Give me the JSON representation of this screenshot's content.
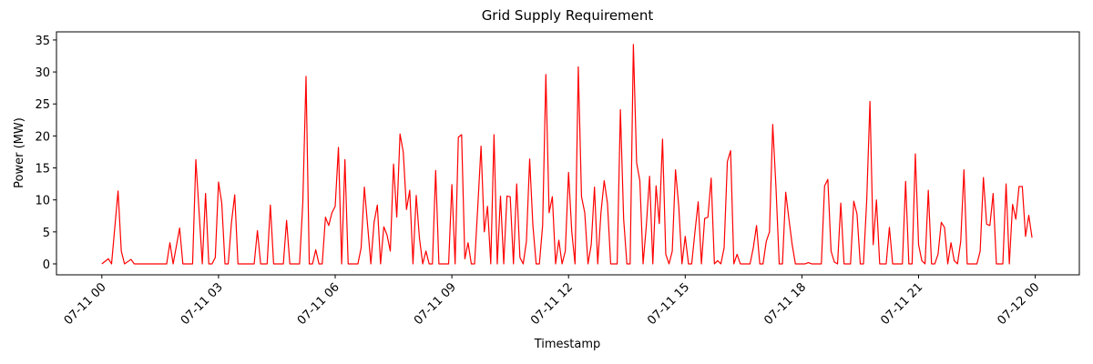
{
  "chart_data": {
    "type": "line",
    "title": "Grid Supply Requirement",
    "xlabel": "Timestamp",
    "ylabel": "Power (MW)",
    "color": "#ff0000",
    "xlim": [
      -70,
      1508
    ],
    "ylim": [
      -1.71,
      36.27
    ],
    "xticks": [
      {
        "value": 0,
        "label": "07-11 00"
      },
      {
        "value": 180,
        "label": "07-11 03"
      },
      {
        "value": 360,
        "label": "07-11 06"
      },
      {
        "value": 540,
        "label": "07-11 09"
      },
      {
        "value": 720,
        "label": "07-11 12"
      },
      {
        "value": 900,
        "label": "07-11 15"
      },
      {
        "value": 1080,
        "label": "07-11 18"
      },
      {
        "value": 1260,
        "label": "07-11 21"
      },
      {
        "value": 1440,
        "label": "07-12 00"
      }
    ],
    "yticks": [
      0,
      5,
      10,
      15,
      20,
      25,
      30,
      35
    ],
    "x": [
      0,
      10,
      15,
      25,
      30,
      35,
      45,
      50,
      100,
      105,
      110,
      120,
      125,
      140,
      145,
      155,
      160,
      165,
      170,
      175,
      180,
      185,
      190,
      195,
      200,
      205,
      210,
      235,
      240,
      245,
      255,
      260,
      265,
      280,
      285,
      290,
      305,
      310,
      315,
      320,
      325,
      330,
      335,
      340,
      345,
      350,
      355,
      360,
      365,
      370,
      375,
      380,
      395,
      400,
      405,
      410,
      415,
      420,
      425,
      430,
      435,
      440,
      445,
      450,
      455,
      460,
      465,
      470,
      475,
      480,
      485,
      490,
      495,
      500,
      505,
      510,
      515,
      520,
      535,
      540,
      545,
      550,
      555,
      560,
      565,
      570,
      575,
      580,
      585,
      590,
      595,
      600,
      605,
      610,
      615,
      620,
      625,
      630,
      635,
      640,
      645,
      650,
      655,
      660,
      665,
      670,
      675,
      680,
      685,
      690,
      695,
      700,
      705,
      710,
      715,
      720,
      725,
      730,
      735,
      740,
      745,
      750,
      755,
      760,
      765,
      770,
      775,
      780,
      785,
      795,
      800,
      805,
      810,
      815,
      820,
      825,
      830,
      835,
      840,
      845,
      850,
      855,
      860,
      865,
      870,
      875,
      880,
      885,
      890,
      895,
      900,
      905,
      910,
      915,
      920,
      925,
      930,
      935,
      940,
      945,
      950,
      955,
      960,
      965,
      970,
      975,
      980,
      985,
      1000,
      1005,
      1010,
      1015,
      1020,
      1025,
      1030,
      1035,
      1040,
      1045,
      1050,
      1055,
      1060,
      1065,
      1070,
      1085,
      1090,
      1095,
      1110,
      1115,
      1120,
      1125,
      1130,
      1135,
      1140,
      1145,
      1155,
      1160,
      1165,
      1170,
      1175,
      1180,
      1185,
      1190,
      1195,
      1200,
      1210,
      1215,
      1220,
      1235,
      1240,
      1245,
      1250,
      1255,
      1260,
      1265,
      1270,
      1275,
      1280,
      1285,
      1290,
      1295,
      1300,
      1305,
      1310,
      1315,
      1320,
      1325,
      1330,
      1335,
      1350,
      1355,
      1360,
      1365,
      1370,
      1375,
      1380,
      1390,
      1395,
      1400,
      1405,
      1410,
      1415,
      1420,
      1425,
      1430,
      1435
    ],
    "values": [
      0,
      0.8,
      0,
      11.4,
      2,
      0,
      0.7,
      0,
      0,
      3.3,
      0,
      5.6,
      0,
      0,
      16.3,
      0,
      11,
      0,
      0,
      1,
      12.8,
      9.5,
      0,
      0,
      6.5,
      10.8,
      0,
      0,
      5.2,
      0,
      0,
      9.2,
      0,
      0,
      6.8,
      0,
      0,
      9.5,
      29.3,
      0,
      0,
      2.2,
      0,
      0,
      7.3,
      6,
      8,
      9,
      18.2,
      0,
      16.3,
      0,
      0,
      2.5,
      12,
      6,
      0,
      6.5,
      9.2,
      0,
      5.8,
      4.5,
      2,
      15.6,
      7.3,
      20.3,
      17.5,
      8.5,
      11.5,
      0,
      10.7,
      4,
      0,
      2,
      0,
      0,
      14.6,
      0,
      0,
      12.4,
      0,
      19.8,
      20.2,
      0.8,
      3.3,
      0,
      0,
      9,
      18.4,
      5,
      9,
      0,
      20.2,
      0,
      10.6,
      0,
      10.6,
      10.5,
      0,
      12.5,
      1,
      0,
      3.5,
      16.4,
      6,
      0,
      0,
      6,
      29.6,
      8,
      10.5,
      0,
      3.7,
      0,
      2,
      14.3,
      5,
      0,
      30.8,
      10.5,
      8,
      0,
      3,
      12,
      0,
      8,
      13,
      9.5,
      0,
      0,
      24.1,
      7,
      0,
      0,
      34.3,
      15.8,
      13,
      0,
      6,
      13.7,
      0,
      12.2,
      6.3,
      19.5,
      1.5,
      0,
      2,
      14.7,
      9,
      0,
      4.3,
      0,
      0,
      5,
      9.7,
      0,
      7.1,
      7.3,
      13.4,
      0,
      0.5,
      0,
      2.5,
      16,
      17.7,
      0,
      1.5,
      0,
      0,
      2.5,
      6,
      0,
      0,
      3.5,
      5,
      21.8,
      12,
      0,
      0,
      11.2,
      7,
      3,
      0,
      0,
      0.2,
      0,
      0,
      12.2,
      13.2,
      2,
      0.3,
      0,
      9.5,
      0,
      0,
      9.8,
      7.8,
      0,
      0,
      10,
      25.4,
      3,
      10,
      0,
      0,
      5.7,
      0,
      0,
      12.9,
      0,
      0,
      17.2,
      3,
      0.5,
      0,
      11.5,
      0,
      0,
      1.5,
      6.5,
      5.7,
      0,
      3.3,
      0.5,
      0,
      3.5,
      14.7,
      0,
      0,
      2,
      13.5,
      6.2,
      6,
      11,
      0,
      0,
      12.5,
      0,
      9.3,
      7,
      12.1,
      12.1,
      4.3,
      7.6,
      4.1
    ]
  }
}
